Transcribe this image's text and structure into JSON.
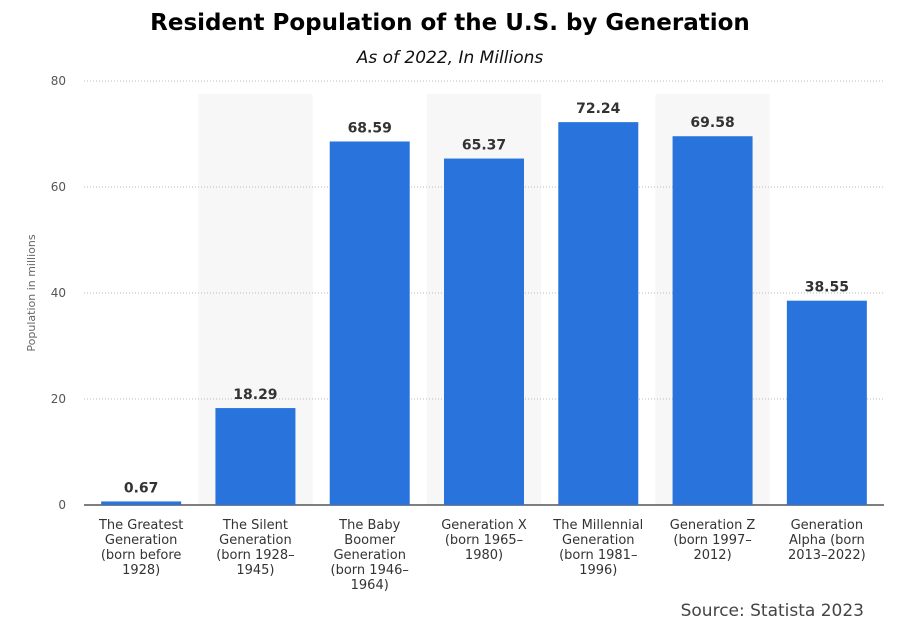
{
  "chart_data": {
    "type": "bar",
    "title": "Resident Population of the U.S. by Generation",
    "subtitle": "As of 2022, In Millions",
    "ylabel": "Population in millions",
    "xlabel": "",
    "ylim": [
      0,
      80
    ],
    "yticks": [
      0,
      20,
      40,
      60,
      80
    ],
    "grid": true,
    "bar_color": "#2874dc",
    "band_color": "#f7f7f7",
    "categories": [
      [
        "The Greatest",
        "Generation",
        "(born before",
        "1928)"
      ],
      [
        "The Silent",
        "Generation",
        "(born 1928–",
        "1945)"
      ],
      [
        "The Baby",
        "Boomer",
        "Generation",
        "(born 1946–",
        "1964)"
      ],
      [
        "Generation X",
        "(born 1965–",
        "1980)"
      ],
      [
        "The Millennial",
        "Generation",
        "(born 1981–",
        "1996)"
      ],
      [
        "Generation Z",
        "(born 1997–",
        "2012)"
      ],
      [
        "Generation",
        "Alpha (born",
        "2013–2022)"
      ]
    ],
    "values": [
      0.67,
      18.29,
      68.59,
      65.37,
      72.24,
      69.58,
      38.55
    ],
    "data_labels": [
      "0.67",
      "18.29",
      "68.59",
      "65.37",
      "72.24",
      "69.58",
      "38.55"
    ],
    "source": "Source: Statista 2023"
  }
}
